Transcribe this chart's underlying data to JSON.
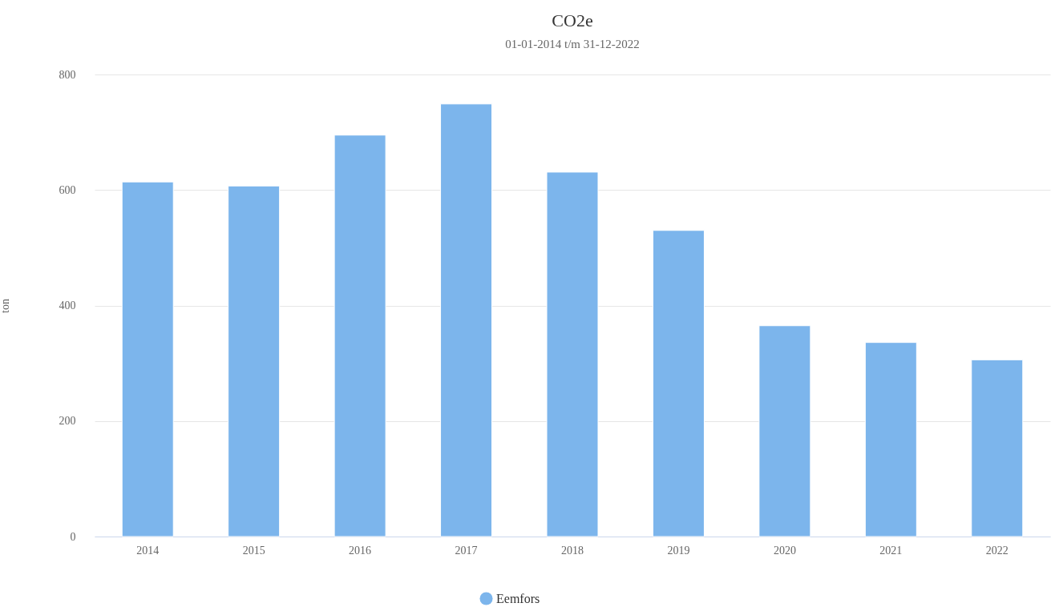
{
  "chart_data": {
    "type": "bar",
    "title": "CO2e",
    "subtitle": "01-01-2014 t/m 31-12-2022",
    "ylabel": "ton",
    "categories": [
      "2014",
      "2015",
      "2016",
      "2017",
      "2018",
      "2019",
      "2020",
      "2021",
      "2022"
    ],
    "series": [
      {
        "name": "Eemfors",
        "color": "#7cb5ec",
        "values": [
          614,
          607,
          695,
          749,
          631,
          530,
          365,
          336,
          306
        ]
      }
    ],
    "ylim": [
      0,
      800
    ],
    "yticks": [
      0,
      200,
      400,
      600,
      800
    ],
    "grid": "y",
    "legend": "bottom"
  }
}
